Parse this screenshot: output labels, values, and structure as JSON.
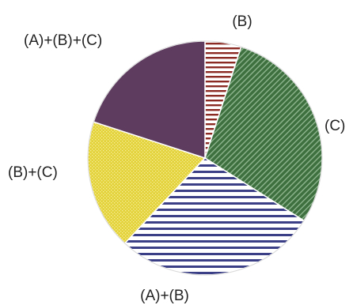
{
  "chart_data": {
    "type": "pie",
    "labels": [
      "(B)",
      "(C)",
      "(A)+(B)",
      "(B)+(C)",
      "(A)+(B)+(C)"
    ],
    "values": [
      5,
      29,
      28,
      18,
      20
    ],
    "start_angle_deg": 0,
    "direction": "clockwise",
    "legend": "none",
    "slices": [
      {
        "label": "(B)",
        "value": 5,
        "color": "#8b2a22",
        "fill_pattern": "horizontal-stripes"
      },
      {
        "label": "(C)",
        "value": 29,
        "color": "#3d6f3f",
        "fill_pattern": "diagonal-hatch"
      },
      {
        "label": "(A)+(B)",
        "value": 28,
        "color": "#3a3f86",
        "fill_pattern": "horizontal-stripes"
      },
      {
        "label": "(B)+(C)",
        "value": 18,
        "color": "#e3d23a",
        "fill_pattern": "crosshatch"
      },
      {
        "label": "(A)+(B)+(C)",
        "value": 20,
        "color": "#5e3c5f",
        "fill_pattern": "solid"
      }
    ]
  }
}
